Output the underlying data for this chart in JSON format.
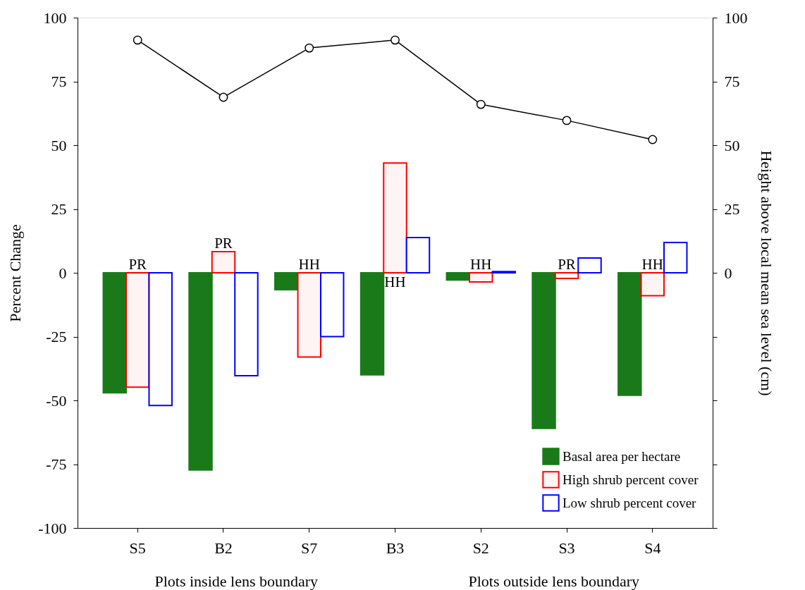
{
  "chart_data": {
    "type": "bar",
    "categories": [
      "S5",
      "B2",
      "S7",
      "B3",
      "S2",
      "S3",
      "S4"
    ],
    "ylabel": "Percent Change",
    "y2label": "Height above local mean sea level (cm)",
    "ylim": [
      -100,
      100
    ],
    "yticks": [
      -100,
      -75,
      -50,
      -25,
      0,
      25,
      50,
      75,
      100
    ],
    "y2lim": [
      -100,
      100
    ],
    "y2ticks": [
      {
        "value": -100,
        "label": null
      },
      {
        "value": -75,
        "label": null
      },
      {
        "value": -50,
        "label": null
      },
      {
        "value": -25,
        "label": null
      },
      0,
      25,
      50,
      75,
      100
    ],
    "series": [
      {
        "name": "Basal area per hectare",
        "color": "#1a7a1a",
        "values": [
          -47,
          -77.3,
          -6.6,
          -40,
          -2.8,
          -61,
          -48
        ]
      },
      {
        "name": "High shrub percent cover",
        "color": "#ff0000",
        "values": [
          -44.8,
          8.3,
          -33,
          43,
          -3.6,
          -2.2,
          -9
        ]
      },
      {
        "name": "Low shrub percent cover",
        "color": "#0000ff",
        "values": [
          -52,
          -40.3,
          -25,
          13.8,
          0.5,
          5.8,
          11.9
        ]
      },
      {
        "type": "line",
        "axis": "y2",
        "color": "#000000",
        "marker": "circle",
        "values": [
          91.2,
          68.8,
          88.1,
          91.2,
          66,
          59.7,
          52.2
        ]
      }
    ],
    "legend": "bottom right",
    "grid": false,
    "annotations": [
      {
        "text": "PR",
        "x": "S5",
        "y": 0
      },
      {
        "text": "PR",
        "x": "B2",
        "y": 8.3
      },
      {
        "text": "HH",
        "x": "S7",
        "y": 0
      },
      {
        "text": "HH",
        "x": "B3",
        "y": 0
      },
      {
        "text": "HH",
        "x": "S2",
        "y": 0
      },
      {
        "text": "PR",
        "x": "S3",
        "y": 0
      },
      {
        "text": "HH",
        "x": "S4",
        "y": 0
      },
      "Plots inside lens boundary",
      "Plots outside lens boundary"
    ]
  }
}
